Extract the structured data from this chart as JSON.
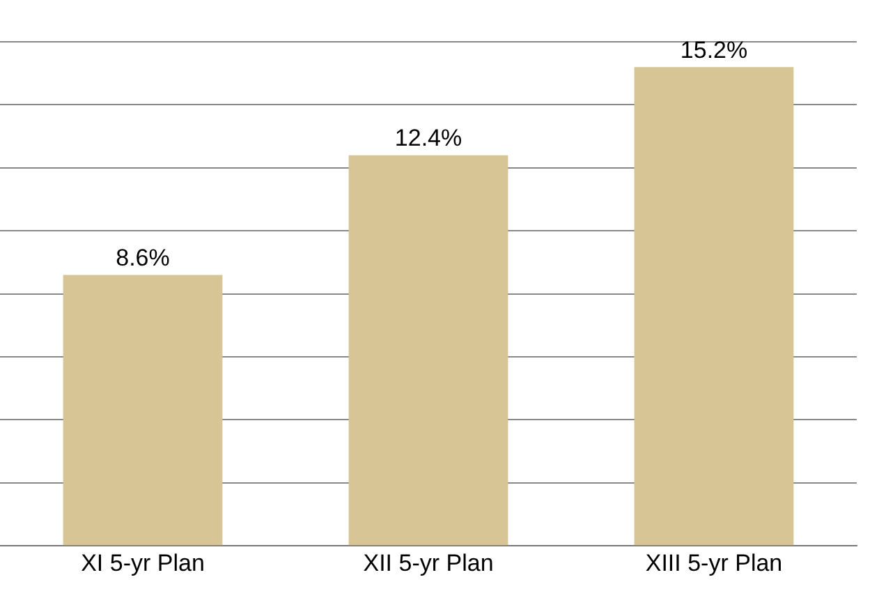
{
  "chart_data": {
    "type": "bar",
    "categories": [
      "XI 5-yr Plan",
      "XII 5-yr Plan",
      "XIII 5-yr Plan"
    ],
    "values": [
      8.6,
      12.4,
      15.2
    ],
    "value_labels": [
      "8.6%",
      "12.4%",
      "15.2%"
    ],
    "color": "#d8c596",
    "ylim": [
      0,
      16
    ],
    "yticks": [
      {
        "value": 0,
        "label": null
      },
      {
        "value": 2,
        "label": null
      },
      {
        "value": 4,
        "label": null
      },
      {
        "value": 6,
        "label": null
      },
      {
        "value": 8,
        "label": null
      },
      {
        "value": 10,
        "label": null
      },
      {
        "value": 12,
        "label": null
      },
      {
        "value": 14,
        "label": null
      },
      {
        "value": 16,
        "label": null
      }
    ],
    "grid": "y",
    "tick_labels": "x",
    "legend": false
  }
}
